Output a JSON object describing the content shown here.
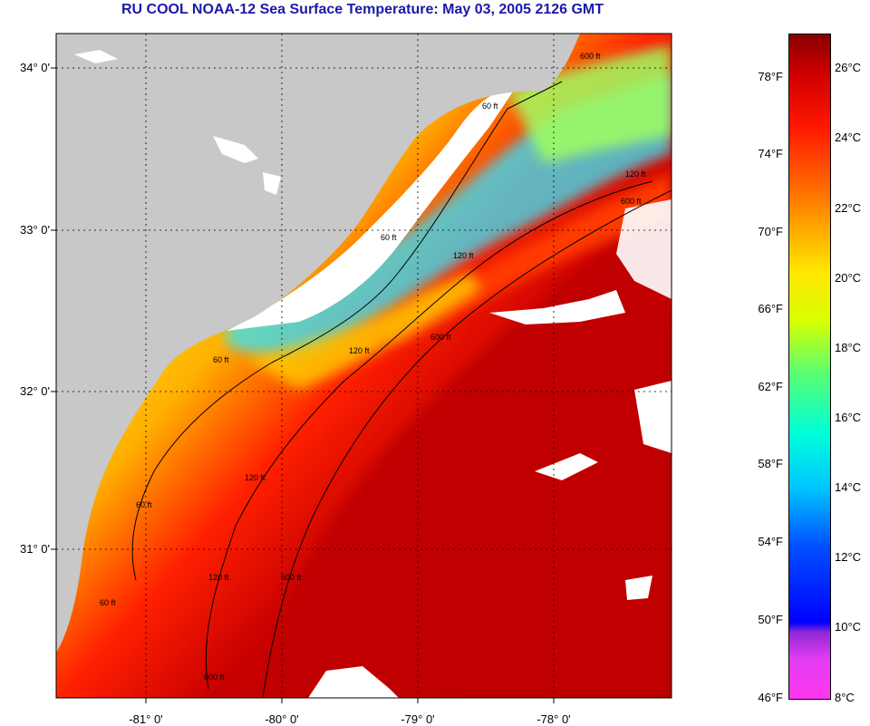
{
  "title": "RU COOL  NOAA-12  Sea Surface Temperature:  May 03, 2005 2126 GMT",
  "lat_labels": [
    "34° 0'",
    "33° 0'",
    "32° 0'",
    "31° 0'"
  ],
  "lon_labels": [
    "-81° 0'",
    "-80° 0'",
    "-79° 0'",
    "-78° 0'"
  ],
  "isobath_labels": [
    "60 ft",
    "60 ft",
    "60 ft",
    "60 ft",
    "60 ft",
    "120 ft",
    "120 ft",
    "120 ft",
    "120 ft",
    "120 ft",
    "600 ft",
    "600 ft",
    "600 ft",
    "600 ft",
    "600 ft"
  ],
  "colorbar": {
    "fahrenheit": [
      "78°F",
      "74°F",
      "70°F",
      "66°F",
      "62°F",
      "58°F",
      "54°F",
      "50°F",
      "46°F"
    ],
    "celsius": [
      "26°C",
      "24°C",
      "22°C",
      "20°C",
      "18°C",
      "16°C",
      "14°C",
      "12°C",
      "10°C",
      "8°C"
    ]
  },
  "colors": {
    "title": "#1a1aa6",
    "land": "#c8c8c8",
    "cloud": "#ffffff",
    "warm": "#b00000",
    "cool": "#00c8ff"
  }
}
